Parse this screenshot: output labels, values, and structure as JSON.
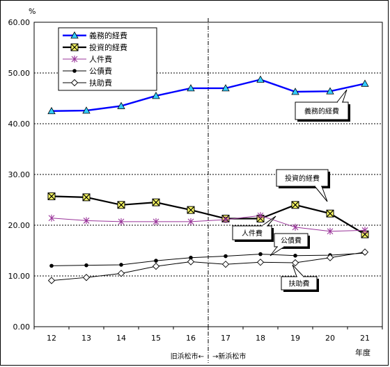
{
  "chart_data": {
    "type": "line",
    "y_unit": "%",
    "x_unit": "年度",
    "ylim": [
      0,
      60
    ],
    "ytick_labels": [
      "0.00",
      "10.00",
      "20.00",
      "30.00",
      "40.00",
      "50.00",
      "60.00"
    ],
    "yticks": [
      0,
      10,
      20,
      30,
      40,
      50,
      60
    ],
    "categories": [
      "12",
      "13",
      "14",
      "15",
      "16",
      "17",
      "18",
      "19",
      "20",
      "21"
    ],
    "grid": "horizontal dashed",
    "legend_position": "top-left",
    "divider": {
      "between": [
        "16",
        "17"
      ],
      "left_label": "旧浜松市←",
      "right_label": "→新浜松市"
    },
    "series": [
      {
        "name": "義務的経費",
        "color": "#0000ff",
        "marker": "triangle-cyan",
        "values": [
          42.5,
          42.6,
          43.5,
          45.5,
          47.0,
          47.0,
          48.7,
          46.3,
          46.4,
          47.9
        ]
      },
      {
        "name": "投資的経費",
        "color": "#000000",
        "marker": "square-x-yellow",
        "values": [
          25.7,
          25.5,
          24.0,
          24.5,
          23.0,
          21.3,
          21.3,
          24.0,
          22.3,
          18.2
        ]
      },
      {
        "name": "人件費",
        "color": "#993399",
        "marker": "asterisk",
        "values": [
          21.4,
          20.9,
          20.7,
          20.7,
          20.7,
          21.1,
          21.9,
          19.6,
          18.8,
          19.0
        ]
      },
      {
        "name": "公債費",
        "color": "#000000",
        "marker": "dot",
        "values": [
          12.0,
          12.1,
          12.2,
          13.0,
          13.6,
          13.9,
          14.3,
          14.0,
          14.1,
          14.5
        ]
      },
      {
        "name": "扶助費",
        "color": "#000000",
        "marker": "diamond-open",
        "values": [
          9.1,
          9.7,
          10.5,
          11.9,
          12.8,
          12.3,
          12.7,
          12.6,
          13.6,
          14.7
        ]
      }
    ],
    "callouts": [
      "義務的経費",
      "投資的経費",
      "人件費",
      "公債費",
      "扶助費"
    ]
  }
}
